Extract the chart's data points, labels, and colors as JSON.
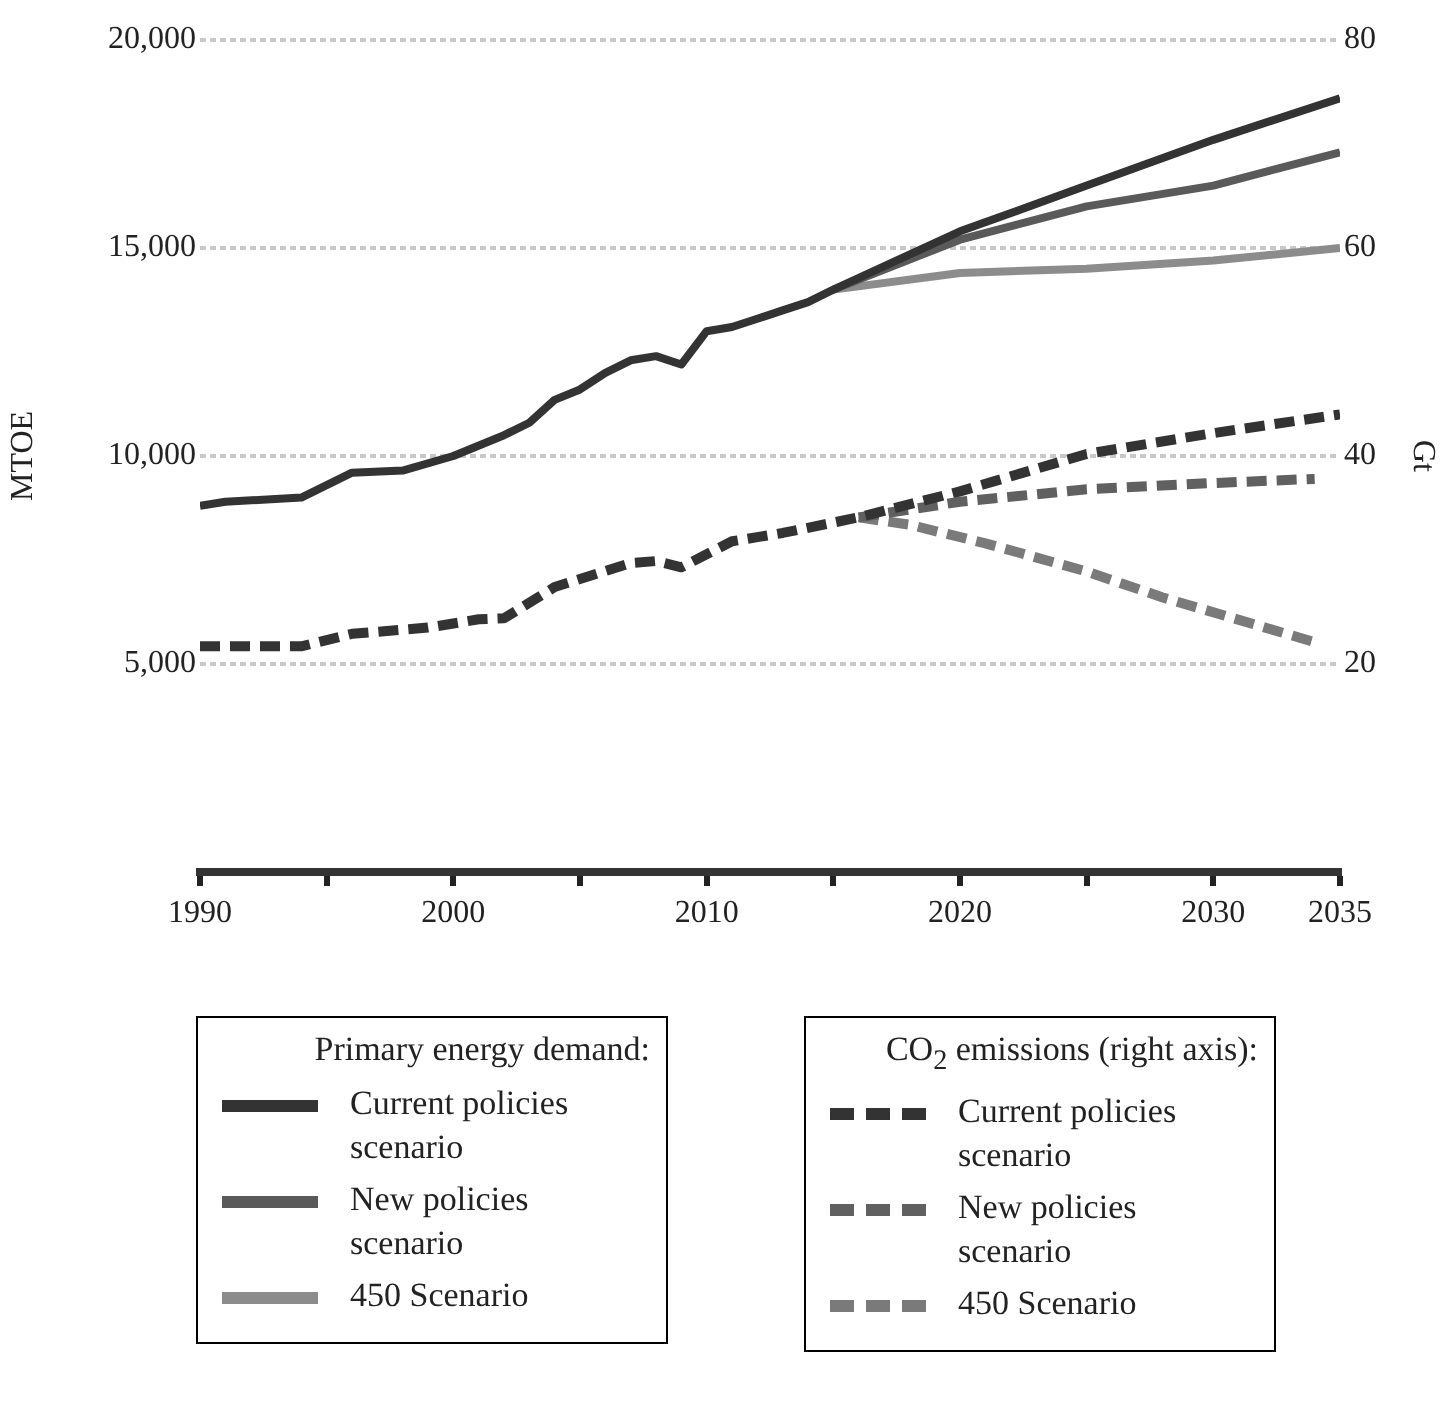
{
  "chart_data": {
    "type": "line",
    "xlabel": null,
    "ylabel": "MTOE",
    "y2label": "Gt",
    "annotations": [
      "Primary energy demand:",
      "CO$_{2}$ emissions (right axis):"
    ],
    "series": [
      {
        "name": "Current policies scenario",
        "color": "#333333",
        "line_style": "solid",
        "x": [
          1990,
          1991,
          1994,
          1996,
          1998,
          2000,
          2002,
          2003,
          2004,
          2005,
          2006,
          2007,
          2008,
          2009,
          2010,
          2011,
          2012,
          2013,
          2014,
          2015,
          2020,
          2025,
          2030,
          2035
        ],
        "values": [
          8800,
          8900,
          9000,
          9600,
          9650,
          10000,
          10500,
          10800,
          11350,
          11600,
          12000,
          12300,
          12400,
          12200,
          13000,
          13100,
          13300,
          13500,
          13700,
          14000,
          15400,
          16500,
          17600,
          18600
        ]
      },
      {
        "name": "New policies scenario",
        "color": "#5a5a5a",
        "line_style": "solid",
        "x": [
          2015,
          2020,
          2025,
          2030,
          2035
        ],
        "values": [
          14000,
          15200,
          16000,
          16500,
          17300
        ]
      },
      {
        "name": "450 Scenario",
        "color": "#8c8c8c",
        "line_style": "solid",
        "x": [
          2015,
          2020,
          2025,
          2030,
          2035
        ],
        "values": [
          14000,
          14400,
          14500,
          14700,
          15000
        ]
      },
      {
        "name": "Current policies scenario",
        "color": "#333333",
        "line_style": "dashed",
        "axis": "y2",
        "x": [
          1990,
          1994,
          1996,
          1999,
          2001,
          2002,
          2004,
          2007,
          2008,
          2009,
          2011,
          2013,
          2016,
          2020,
          2025,
          2030,
          2035
        ],
        "values": [
          21.7,
          21.7,
          22.9,
          23.5,
          24.3,
          24.4,
          27.4,
          29.7,
          29.9,
          29.3,
          31.8,
          32.6,
          34.1,
          36.6,
          40.2,
          42.2,
          44
        ]
      },
      {
        "name": "New policies scenario",
        "color": "#606060",
        "line_style": "dashed",
        "axis": "y2",
        "x": [
          2016,
          2020,
          2025,
          2030,
          2034
        ],
        "values": [
          34.1,
          35.6,
          36.8,
          37.4,
          37.8
        ]
      },
      {
        "name": "450 Scenario",
        "color": "#7a7a7a",
        "line_style": "dashed",
        "axis": "y2",
        "x": [
          2016,
          2018,
          2021,
          2025,
          2028,
          2034
        ],
        "values": [
          34.1,
          33.4,
          31.6,
          28.9,
          26.4,
          22.1
        ]
      }
    ],
    "xlim": [
      1990,
      2035
    ],
    "xticks": [
      1990,
      {
        "value": 1995,
        "label": null
      },
      2000,
      {
        "value": 2005,
        "label": null
      },
      2010,
      {
        "value": 2015,
        "label": null
      },
      2020,
      {
        "value": 2025,
        "label": null
      },
      2030,
      2035
    ],
    "ylim": [
      0,
      20000
    ],
    "yticks": [
      {
        "value": 5000,
        "label": "5,000"
      },
      {
        "value": 10000,
        "label": "10,000"
      },
      {
        "value": 15000,
        "label": "15,000"
      },
      {
        "value": 20000,
        "label": "20,000"
      }
    ],
    "y2lim": [
      0,
      80
    ],
    "y2ticks": [
      20,
      40,
      60,
      80
    ],
    "grid": "y",
    "legend": "bottom",
    "marker": "none"
  }
}
